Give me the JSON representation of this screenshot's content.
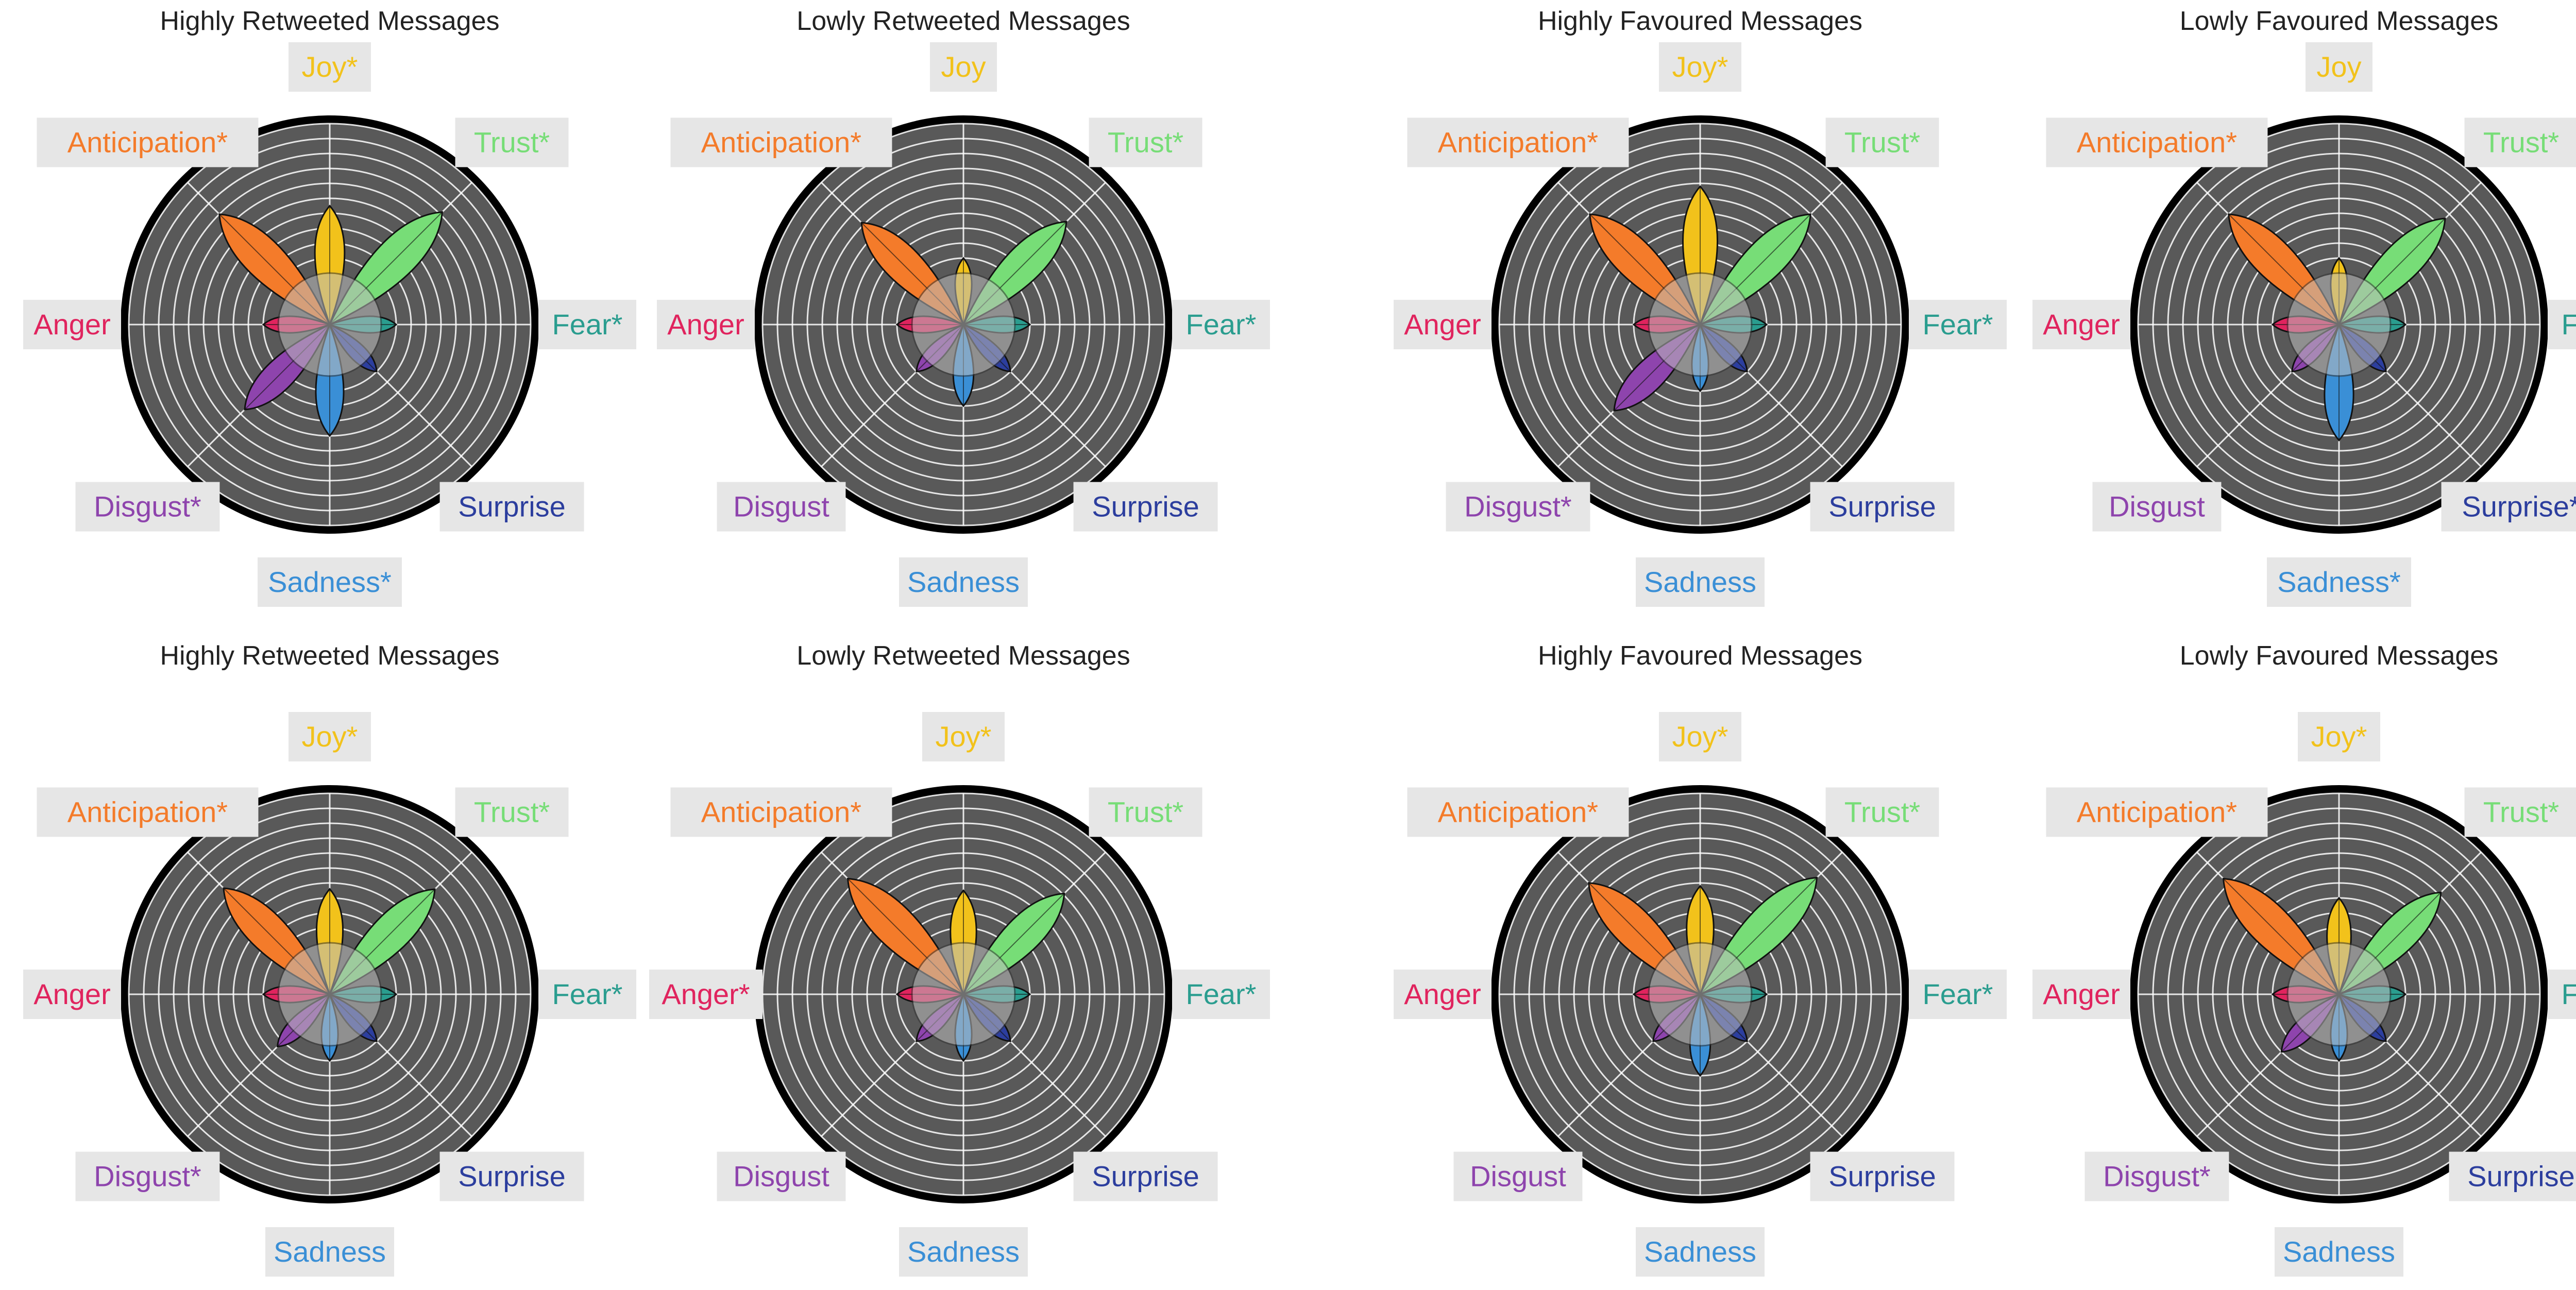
{
  "colors": {
    "anticipation": "#f47b2a",
    "joy": "#f2c21b",
    "trust": "#77dd77",
    "fear": "#2a9d8f",
    "anger": "#e0245e",
    "disgust": "#8e44ad",
    "sadness": "#3a8fd6",
    "surprise": "#2c3e9e",
    "chart_bg": "#595959",
    "center_disk": "#bdbdbd",
    "label_box": "#e6e6e6",
    "rim": "#000000"
  },
  "chart_data": [
    {
      "type": "radar",
      "title": "Highly Retweeted Messages",
      "categories": [
        "Joy*",
        "Trust*",
        "Fear*",
        "Surprise",
        "Sadness*",
        "Disgust*",
        "Anger",
        "Anticipation*"
      ],
      "values": [
        4.5,
        7.2,
        1.0,
        1.0,
        4.0,
        4.6,
        1.0,
        7.0
      ],
      "rlim": [
        0,
        10
      ]
    },
    {
      "type": "radar",
      "title": "Lowly Retweeted Messages",
      "categories": [
        "Joy",
        "Trust*",
        "Fear*",
        "Surprise",
        "Sadness",
        "Disgust",
        "Anger",
        "Anticipation*"
      ],
      "values": [
        1.0,
        6.3,
        1.0,
        1.0,
        2.0,
        1.0,
        1.0,
        6.2
      ],
      "rlim": [
        0,
        10
      ]
    },
    {
      "type": "radar",
      "title": "Highly Favoured Messages",
      "categories": [
        "Joy*",
        "Trust*",
        "Fear*",
        "Surprise",
        "Sadness",
        "Disgust*",
        "Anger",
        "Anticipation*"
      ],
      "values": [
        5.8,
        7.0,
        1.0,
        1.0,
        1.0,
        4.7,
        1.0,
        7.0
      ],
      "rlim": [
        0,
        10
      ]
    },
    {
      "type": "radar",
      "title": "Lowly Favoured Messages",
      "categories": [
        "Joy",
        "Trust*",
        "Fear*",
        "Surprise*",
        "Sadness*",
        "Disgust",
        "Anger",
        "Anticipation*"
      ],
      "values": [
        1.0,
        6.6,
        1.0,
        1.0,
        4.3,
        1.0,
        1.0,
        7.0
      ],
      "rlim": [
        0,
        10
      ]
    },
    {
      "type": "radar",
      "title": "Highly Retweeted Messages",
      "categories": [
        "Joy*",
        "Trust*",
        "Fear*",
        "Surprise",
        "Sadness",
        "Disgust*",
        "Anger",
        "Anticipation*"
      ],
      "values": [
        3.6,
        6.5,
        1.0,
        1.0,
        1.0,
        1.5,
        1.0,
        6.6
      ],
      "rlim": [
        0,
        10
      ]
    },
    {
      "type": "radar",
      "title": "Lowly Retweeted Messages",
      "categories": [
        "Joy*",
        "Trust*",
        "Fear*",
        "Surprise",
        "Sadness",
        "Disgust",
        "Anger*",
        "Anticipation*"
      ],
      "values": [
        3.5,
        6.1,
        1.0,
        1.0,
        1.0,
        1.0,
        1.0,
        7.5
      ],
      "rlim": [
        0,
        10
      ]
    },
    {
      "type": "radar",
      "title": "Highly Favoured Messages",
      "categories": [
        "Joy*",
        "Trust*",
        "Fear*",
        "Surprise",
        "Sadness",
        "Disgust",
        "Anger",
        "Anticipation*"
      ],
      "values": [
        3.8,
        7.6,
        1.0,
        1.0,
        2.0,
        1.0,
        1.0,
        7.1
      ],
      "rlim": [
        0,
        10
      ]
    },
    {
      "type": "radar",
      "title": "Lowly Favoured Messages",
      "categories": [
        "Joy*",
        "Trust*",
        "Fear*",
        "Surprise",
        "Sadness",
        "Disgust*",
        "Anger",
        "Anticipation*"
      ],
      "values": [
        3.0,
        6.2,
        1.0,
        1.0,
        1.0,
        2.0,
        1.0,
        7.5
      ],
      "rlim": [
        0,
        10
      ]
    }
  ]
}
